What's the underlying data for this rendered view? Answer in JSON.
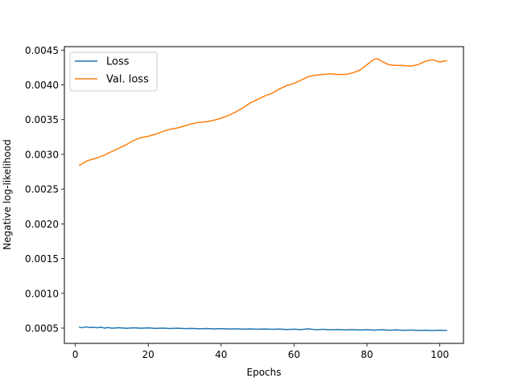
{
  "chart_data": {
    "type": "line",
    "xlabel": "Epochs",
    "ylabel": "Negative log-likelihood",
    "xlim": [
      -3,
      106.5
    ],
    "ylim": [
      0.00028,
      0.00455
    ],
    "xticks": [
      0,
      20,
      40,
      60,
      80,
      100
    ],
    "yticks": [
      0.0005,
      0.001,
      0.0015,
      0.002,
      0.0025,
      0.003,
      0.0035,
      0.004,
      0.0045
    ],
    "xtick_labels": [
      "0",
      "20",
      "40",
      "60",
      "80",
      "100"
    ],
    "ytick_labels": [
      "0.0005",
      "0.0010",
      "0.0015",
      "0.0020",
      "0.0025",
      "0.0030",
      "0.0035",
      "0.0040",
      "0.0045"
    ],
    "grid": false,
    "legend_position": "top-left",
    "series": [
      {
        "name": "Loss",
        "color": "#1f77b4",
        "x": [
          1,
          2,
          3,
          4,
          5,
          6,
          7,
          8,
          9,
          10,
          12,
          14,
          16,
          18,
          20,
          22,
          24,
          26,
          28,
          30,
          32,
          34,
          36,
          38,
          40,
          42,
          44,
          46,
          48,
          50,
          52,
          54,
          56,
          58,
          60,
          62,
          64,
          66,
          68,
          70,
          72,
          74,
          76,
          78,
          80,
          82,
          84,
          86,
          88,
          90,
          92,
          94,
          96,
          98,
          100,
          102
        ],
        "y": [
          0.000515,
          0.000505,
          0.000518,
          0.000508,
          0.000512,
          0.000505,
          0.000513,
          0.0005,
          0.000508,
          0.000498,
          0.000505,
          0.000497,
          0.000504,
          0.000498,
          0.000503,
          0.000496,
          0.0005,
          0.000494,
          0.000499,
          0.000493,
          0.000496,
          0.00049,
          0.000494,
          0.000489,
          0.000492,
          0.000487,
          0.00049,
          0.000485,
          0.000488,
          0.000484,
          0.000487,
          0.000482,
          0.000485,
          0.00048,
          0.000484,
          0.000478,
          0.00049,
          0.000476,
          0.000482,
          0.000475,
          0.000479,
          0.000474,
          0.000478,
          0.000472,
          0.000476,
          0.000471,
          0.000476,
          0.000469,
          0.000474,
          0.000468,
          0.000472,
          0.000466,
          0.00047,
          0.000465,
          0.000469,
          0.000467
        ]
      },
      {
        "name": "Val. loss",
        "color": "#ff7f0e",
        "x": [
          1,
          2,
          3,
          4,
          6,
          8,
          10,
          12,
          14,
          16,
          18,
          20,
          22,
          24,
          26,
          28,
          30,
          32,
          34,
          36,
          38,
          40,
          42,
          44,
          46,
          48,
          50,
          52,
          54,
          56,
          58,
          60,
          62,
          64,
          66,
          68,
          70,
          72,
          74,
          76,
          78,
          80,
          82,
          83,
          84,
          86,
          88,
          90,
          92,
          94,
          96,
          98,
          100,
          102
        ],
        "y": [
          0.00284,
          0.00287,
          0.0029,
          0.00292,
          0.00295,
          0.00299,
          0.00304,
          0.00309,
          0.00314,
          0.0032,
          0.00324,
          0.00326,
          0.00329,
          0.00333,
          0.00336,
          0.00338,
          0.00341,
          0.00344,
          0.00346,
          0.00347,
          0.00349,
          0.00352,
          0.00356,
          0.00361,
          0.00367,
          0.00374,
          0.00379,
          0.00384,
          0.00388,
          0.00394,
          0.00399,
          0.00402,
          0.00407,
          0.00412,
          0.00414,
          0.00415,
          0.00416,
          0.00415,
          0.00415,
          0.00417,
          0.00421,
          0.00429,
          0.00437,
          0.004375,
          0.00434,
          0.00429,
          0.00428,
          0.00428,
          0.00427,
          0.00429,
          0.00434,
          0.00436,
          0.00433,
          0.00435
        ]
      }
    ]
  }
}
